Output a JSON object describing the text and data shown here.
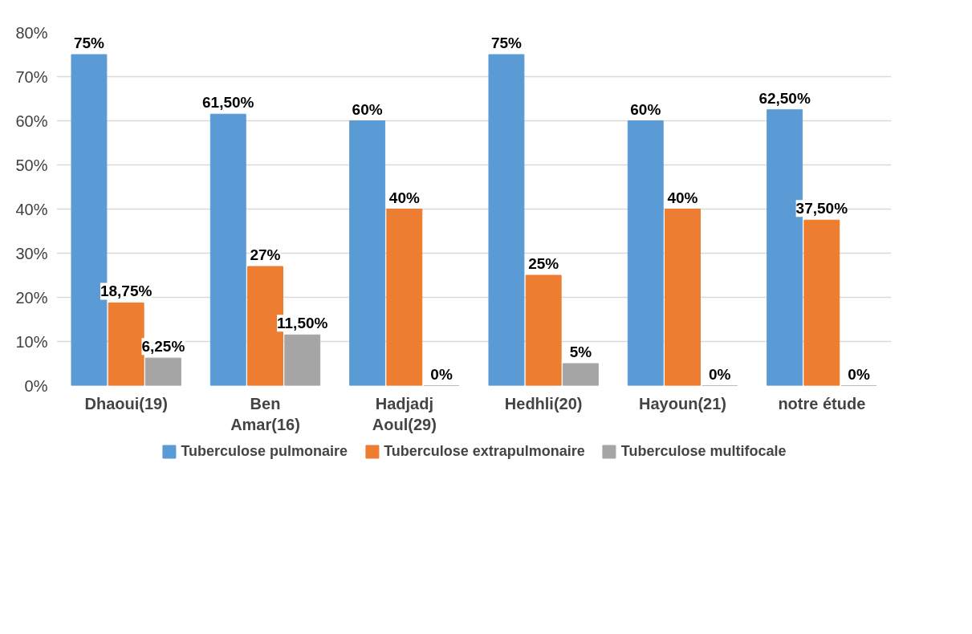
{
  "chart_data": {
    "type": "bar",
    "categories": [
      "Dhaoui(19)",
      "Ben Amar(16)",
      "Hadjadj Aoul(29)",
      "Hedhli(20)",
      "Hayoun(21)",
      "notre étude"
    ],
    "series": [
      {
        "name": "Tuberculose pulmonaire",
        "color": "#5b9bd5",
        "values": [
          75,
          61.5,
          60,
          75,
          60,
          62.5
        ],
        "value_labels": [
          "75%",
          "61,50%",
          "60%",
          "75%",
          "60%",
          "62,50%"
        ]
      },
      {
        "name": "Tuberculose extrapulmonaire",
        "color": "#ed7d31",
        "values": [
          18.75,
          27,
          40,
          25,
          40,
          37.5
        ],
        "value_labels": [
          "18,75%",
          "27%",
          "40%",
          "25%",
          "40%",
          "37,50%"
        ]
      },
      {
        "name": "Tuberculose multifocale",
        "color": "#a5a5a5",
        "values": [
          6.25,
          11.5,
          0,
          5,
          0,
          0
        ],
        "value_labels": [
          "6,25%",
          "11,50%",
          "0%",
          "5%",
          "0%",
          "0%"
        ]
      }
    ],
    "ylim": [
      0,
      80
    ],
    "yticks": [
      {
        "value": 0,
        "label": "0%"
      },
      {
        "value": 10,
        "label": "10%"
      },
      {
        "value": 20,
        "label": "20%"
      },
      {
        "value": 30,
        "label": "30%"
      },
      {
        "value": 40,
        "label": "40%"
      },
      {
        "value": 50,
        "label": "50%"
      },
      {
        "value": 60,
        "label": "60%"
      },
      {
        "value": 70,
        "label": "70%"
      },
      {
        "value": 80,
        "label": "80%"
      }
    ],
    "grid": "y",
    "legend": "bottom"
  }
}
